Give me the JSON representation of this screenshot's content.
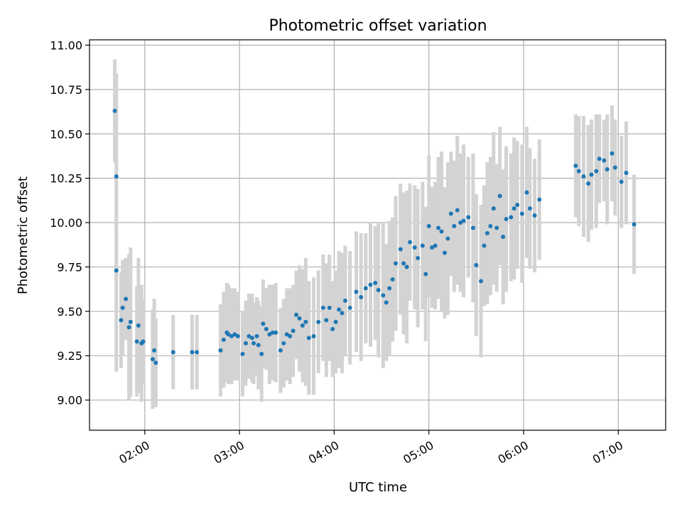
{
  "chart_data": {
    "type": "scatter",
    "title": "Photometric offset variation",
    "xlabel": "UTC time",
    "ylabel": "Photometric offset",
    "xlim": [
      "01:25",
      "07:30"
    ],
    "ylim": [
      8.83,
      11.03
    ],
    "grid": true,
    "x_ticks": [
      "02:00",
      "03:00",
      "04:00",
      "05:00",
      "06:00",
      "07:00"
    ],
    "y_ticks": [
      "9.00",
      "9.25",
      "9.50",
      "9.75",
      "10.00",
      "10.25",
      "10.50",
      "10.75",
      "11.00"
    ],
    "colors": {
      "points": "#1f77b4",
      "errorbars": "#d3d3d3",
      "grid": "#b0b0b0"
    },
    "series": [
      {
        "errorbars": true,
        "x": [
          "01:41",
          "01:42",
          "01:42",
          "01:45",
          "01:46",
          "01:48",
          "01:50",
          "01:51",
          "01:55",
          "01:56",
          "01:58",
          "01:59",
          "02:05",
          "02:06",
          "02:07",
          "02:18",
          "02:30",
          "02:33",
          "02:48",
          "02:50",
          "02:52",
          "02:53",
          "02:55",
          "02:57",
          "02:59",
          "03:02",
          "03:04",
          "03:06",
          "03:08",
          "03:09",
          "03:11",
          "03:12",
          "03:14",
          "03:15",
          "03:17",
          "03:19",
          "03:21",
          "03:23",
          "03:26",
          "03:28",
          "03:30",
          "03:32",
          "03:34",
          "03:36",
          "03:38",
          "03:40",
          "03:42",
          "03:44",
          "03:47",
          "03:50",
          "03:53",
          "03:55",
          "03:57",
          "03:59",
          "04:01",
          "04:03",
          "04:05",
          "04:07",
          "04:10",
          "04:14",
          "04:17",
          "04:20",
          "04:23",
          "04:26",
          "04:28",
          "04:31",
          "04:33",
          "04:35",
          "04:37",
          "04:39",
          "04:42",
          "04:44",
          "04:46",
          "04:48",
          "04:51",
          "04:53",
          "04:56",
          "04:58",
          "05:00",
          "05:02",
          "05:04",
          "05:06",
          "05:08",
          "05:10",
          "05:12",
          "05:14",
          "05:16",
          "05:18",
          "05:20",
          "05:22",
          "05:25",
          "05:28",
          "05:30",
          "05:33",
          "05:35",
          "05:37",
          "05:39",
          "05:41",
          "05:43",
          "05:45",
          "05:47",
          "05:49",
          "05:52",
          "05:54",
          "05:56",
          "05:59",
          "06:02",
          "06:04",
          "06:07",
          "06:10",
          "06:33",
          "06:35",
          "06:38",
          "06:41",
          "06:43",
          "06:46",
          "06:48",
          "06:51",
          "06:53",
          "06:56",
          "06:58",
          "07:02",
          "07:05",
          "07:10"
        ],
        "y": [
          10.63,
          10.26,
          9.73,
          9.45,
          9.52,
          9.57,
          9.41,
          9.44,
          9.33,
          9.42,
          9.32,
          9.33,
          9.23,
          9.28,
          9.21,
          9.27,
          9.27,
          9.27,
          9.28,
          9.34,
          9.38,
          9.37,
          9.36,
          9.37,
          9.36,
          9.26,
          9.32,
          9.36,
          9.35,
          9.32,
          9.36,
          9.31,
          9.26,
          9.43,
          9.4,
          9.37,
          9.38,
          9.38,
          9.28,
          9.32,
          9.37,
          9.36,
          9.39,
          9.48,
          9.46,
          9.42,
          9.44,
          9.35,
          9.36,
          9.44,
          9.52,
          9.45,
          9.52,
          9.4,
          9.44,
          9.51,
          9.49,
          9.56,
          9.52,
          9.61,
          9.58,
          9.63,
          9.65,
          9.66,
          9.62,
          9.59,
          9.55,
          9.63,
          9.68,
          9.77,
          9.85,
          9.77,
          9.75,
          9.89,
          9.86,
          9.8,
          9.87,
          9.71,
          9.98,
          9.86,
          9.87,
          9.97,
          9.95,
          9.83,
          9.91,
          10.05,
          9.98,
          10.07,
          10.0,
          10.01,
          10.03,
          9.97,
          9.76,
          9.67,
          9.87,
          9.94,
          9.98,
          10.08,
          9.97,
          10.15,
          9.92,
          10.02,
          10.03,
          10.08,
          10.1,
          10.05,
          10.17,
          10.08,
          10.04,
          10.13,
          10.32,
          10.29,
          10.26,
          10.22,
          10.27,
          10.29,
          10.36,
          10.35,
          10.3,
          10.39,
          10.31,
          10.23,
          10.28,
          9.99
        ],
        "err": [
          0.29,
          0.58,
          0.57,
          0.27,
          0.27,
          0.23,
          0.41,
          0.42,
          0.31,
          0.38,
          0.33,
          0.24,
          0.28,
          0.29,
          0.25,
          0.21,
          0.21,
          0.21,
          0.26,
          0.27,
          0.28,
          0.28,
          0.27,
          0.26,
          0.25,
          0.24,
          0.24,
          0.24,
          0.25,
          0.23,
          0.22,
          0.25,
          0.27,
          0.25,
          0.23,
          0.28,
          0.27,
          0.28,
          0.24,
          0.25,
          0.26,
          0.27,
          0.26,
          0.25,
          0.3,
          0.32,
          0.36,
          0.32,
          0.33,
          0.29,
          0.3,
          0.32,
          0.3,
          0.27,
          0.29,
          0.33,
          0.34,
          0.31,
          0.32,
          0.34,
          0.36,
          0.31,
          0.35,
          0.32,
          0.38,
          0.41,
          0.33,
          0.38,
          0.35,
          0.38,
          0.37,
          0.4,
          0.43,
          0.33,
          0.35,
          0.39,
          0.36,
          0.38,
          0.4,
          0.34,
          0.36,
          0.4,
          0.45,
          0.37,
          0.43,
          0.35,
          0.37,
          0.42,
          0.39,
          0.43,
          0.34,
          0.42,
          0.4,
          0.43,
          0.34,
          0.4,
          0.39,
          0.43,
          0.36,
          0.39,
          0.38,
          0.41,
          0.36,
          0.4,
          0.36,
          0.39,
          0.37,
          0.34,
          0.32,
          0.34,
          0.29,
          0.31,
          0.34,
          0.33,
          0.31,
          0.32,
          0.25,
          0.23,
          0.31,
          0.27,
          0.27,
          0.26,
          0.29,
          0.28
        ]
      }
    ]
  }
}
